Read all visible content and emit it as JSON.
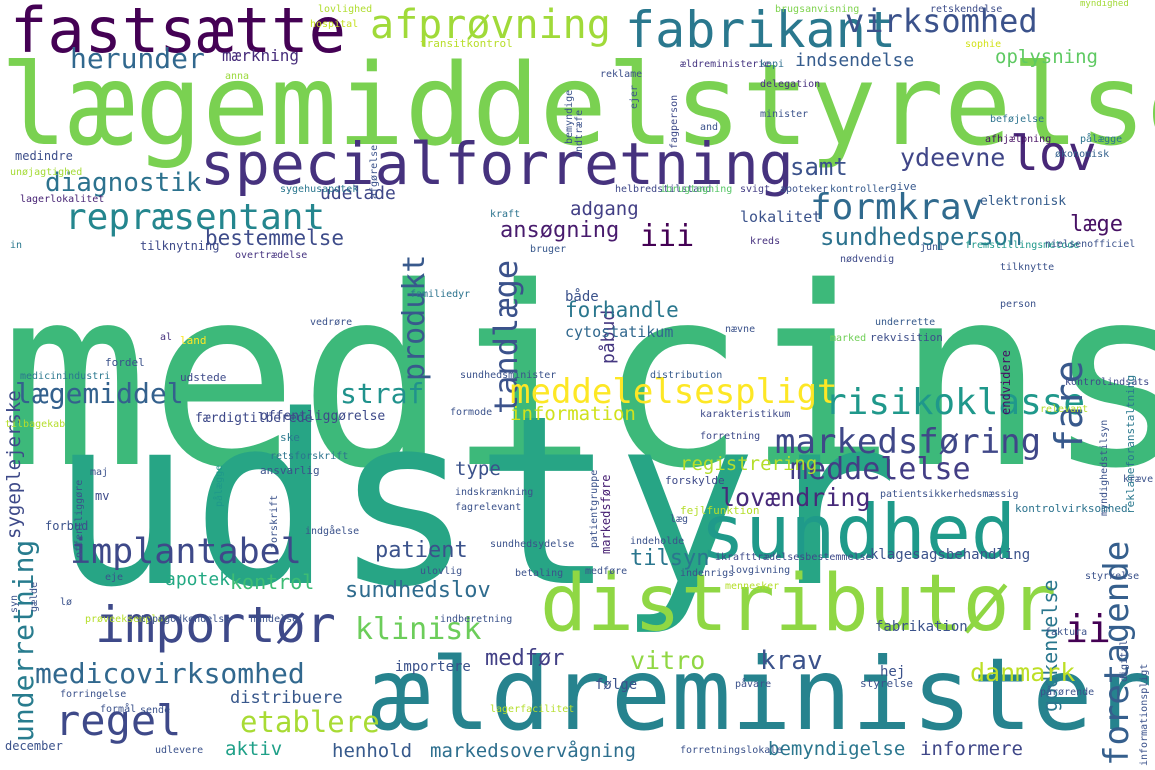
{
  "words": [
    {
      "text": "medicinsk",
      "c": "#3db97a"
    },
    {
      "text": "udstyr",
      "c": "#27a585"
    },
    {
      "text": "lægemiddelstyrelse",
      "c": "#7ad151"
    },
    {
      "text": "ældreminister",
      "c": "#26838e"
    },
    {
      "text": "distributør",
      "c": "#8fd744"
    },
    {
      "text": "sundhed",
      "c": "#1f9a8a"
    },
    {
      "text": "specialforretning",
      "c": "#46327e"
    },
    {
      "text": "fastsætte",
      "c": "#440154"
    },
    {
      "text": "fabrikant",
      "c": "#2a788e"
    },
    {
      "text": "afprøvning",
      "c": "#a0da39"
    },
    {
      "text": "virksomhed",
      "c": "#3b528b"
    },
    {
      "text": "herunder",
      "c": "#31688e"
    },
    {
      "text": "mærkning",
      "c": "#472d7b"
    },
    {
      "text": "indsendelse",
      "c": "#365c8d"
    },
    {
      "text": "oplysning",
      "c": "#5ec962"
    },
    {
      "text": "lov",
      "c": "#482878"
    },
    {
      "text": "samt",
      "c": "#3b528b"
    },
    {
      "text": "ydeevne",
      "c": "#404688"
    },
    {
      "text": "diagnostik",
      "c": "#2c728e"
    },
    {
      "text": "repræsentant",
      "c": "#24868e"
    },
    {
      "text": "formkrav",
      "c": "#306a8e"
    },
    {
      "text": "udelade",
      "c": "#3f4788"
    },
    {
      "text": "adgang",
      "c": "#423f85"
    },
    {
      "text": "bestemmelse",
      "c": "#3e4c8a"
    },
    {
      "text": "ansøgning",
      "c": "#481b6d"
    },
    {
      "text": "iii",
      "c": "#440154"
    },
    {
      "text": "tandlæge",
      "c": "#3b528b"
    },
    {
      "text": "sundhedsperson",
      "c": "#2c728e"
    },
    {
      "text": "læge",
      "c": "#471164"
    },
    {
      "text": "produkt",
      "c": "#38598c"
    },
    {
      "text": "påbud",
      "c": "#453781"
    },
    {
      "text": "forhandle",
      "c": "#2a778e"
    },
    {
      "text": "cytostatikum",
      "c": "#31688e"
    },
    {
      "text": "lægemiddel",
      "c": "#34618d"
    },
    {
      "text": "straf",
      "c": "#20928c"
    },
    {
      "text": "meddelelsespligt",
      "c": "#fde725"
    },
    {
      "text": "risikoklasse",
      "c": "#1f988b"
    },
    {
      "text": "information",
      "c": "#d0e11c"
    },
    {
      "text": "markedsføring",
      "c": "#3f4788"
    },
    {
      "text": "meddelelse",
      "c": "#433e85"
    },
    {
      "text": "type",
      "c": "#3b528b"
    },
    {
      "text": "registrering",
      "c": "#b5de2b"
    },
    {
      "text": "lovændring",
      "c": "#472a7a"
    },
    {
      "text": "fare",
      "c": "#38598c"
    },
    {
      "text": "underretning",
      "c": "#287c8e"
    },
    {
      "text": "implantabel",
      "c": "#3e4989"
    },
    {
      "text": "patient",
      "c": "#3b528b"
    },
    {
      "text": "tilsyn",
      "c": "#2a768e"
    },
    {
      "text": "apotek",
      "c": "#23a983"
    },
    {
      "text": "kontrol",
      "c": "#3dbc74"
    },
    {
      "text": "sundhedslov",
      "c": "#2f6c8e"
    },
    {
      "text": "importør",
      "c": "#3e4989"
    },
    {
      "text": "klinisk",
      "c": "#6ccd5a"
    },
    {
      "text": "foretagende",
      "c": "#355f8d"
    },
    {
      "text": "ii",
      "c": "#440154"
    },
    {
      "text": "medfør",
      "c": "#424086"
    },
    {
      "text": "vitro",
      "c": "#90d743"
    },
    {
      "text": "krav",
      "c": "#3b528b"
    },
    {
      "text": "godkendelse",
      "c": "#2a778e"
    },
    {
      "text": "medicovirksomhed",
      "c": "#31688e"
    },
    {
      "text": "regel",
      "c": "#3e4989"
    },
    {
      "text": "etablere",
      "c": "#a8db34"
    },
    {
      "text": "distribuere",
      "c": "#38588c"
    },
    {
      "text": "danmark",
      "c": "#bddf26"
    },
    {
      "text": "aktiv",
      "c": "#1fa088"
    },
    {
      "text": "henhold",
      "c": "#375a8c"
    },
    {
      "text": "markedsovervågning",
      "c": "#2e6f8e"
    },
    {
      "text": "bemyndigelse",
      "c": "#2a768e"
    },
    {
      "text": "informere",
      "c": "#3f4788"
    },
    {
      "text": "sygeplejerske",
      "c": "#3e4a89"
    },
    {
      "text": "transitkontrol",
      "c": "#b8de29"
    },
    {
      "text": "myndighed",
      "c": "#a2da37"
    },
    {
      "text": "brugsanvisning",
      "c": "#7fd34e"
    },
    {
      "text": "retskendelse",
      "c": "#3d4d8a"
    },
    {
      "text": "lovlighed",
      "c": "#b0dd2f"
    },
    {
      "text": "hospital",
      "c": "#c5e021"
    },
    {
      "text": "anna",
      "c": "#9bd93c"
    },
    {
      "text": "ældreministerie",
      "c": "#453581"
    },
    {
      "text": "kopi",
      "c": "#2e6e8e"
    },
    {
      "text": "sophie",
      "c": "#d2e21b"
    },
    {
      "text": "delegation",
      "c": "#472f7d"
    },
    {
      "text": "reklame",
      "c": "#3c4f8a"
    },
    {
      "text": "fagperson",
      "c": "#3e4a89"
    },
    {
      "text": "beføjelse",
      "c": "#2c738e"
    },
    {
      "text": "afhjælpning",
      "c": "#471164"
    },
    {
      "text": "økonomisk",
      "c": "#34618d"
    },
    {
      "text": "pålægge",
      "c": "#2b748e"
    },
    {
      "text": "medindre",
      "c": "#3d4e8a"
    },
    {
      "text": "unøjagtighed",
      "c": "#a5db36"
    },
    {
      "text": "sygehusapotek",
      "c": "#2a778e"
    },
    {
      "text": "helbredstilstand",
      "c": "#3f4889"
    },
    {
      "text": "ibrugtagning",
      "c": "#56c667"
    },
    {
      "text": "svigt",
      "c": "#433e85"
    },
    {
      "text": "apoteker",
      "c": "#3b528b"
    },
    {
      "text": "kontroller",
      "c": "#375b8d"
    },
    {
      "text": "give",
      "c": "#38588c"
    },
    {
      "text": "elektronisk",
      "c": "#365d8d"
    },
    {
      "text": "lagerlokalitet",
      "c": "#482475"
    },
    {
      "text": "kraft",
      "c": "#2c738e"
    },
    {
      "text": "lokalitet",
      "c": "#3b528b"
    },
    {
      "text": "in",
      "c": "#2a788e"
    },
    {
      "text": "fremstillingsmetode",
      "c": "#1f998a"
    },
    {
      "text": "tilknytning",
      "c": "#3e4a89"
    },
    {
      "text": "bruger",
      "c": "#38588c"
    },
    {
      "text": "kreds",
      "c": "#46317e"
    },
    {
      "text": "juni",
      "c": "#3b528b"
    },
    {
      "text": "nielsenofficiel",
      "c": "#3b528b"
    },
    {
      "text": "overtrædelse",
      "c": "#463480"
    },
    {
      "text": "nødvendig",
      "c": "#3e4a89"
    },
    {
      "text": "tilknytte",
      "c": "#3b528b"
    },
    {
      "text": "både",
      "c": "#3b528b"
    },
    {
      "text": "familiedyr",
      "c": "#2c738e"
    },
    {
      "text": "person",
      "c": "#3b528b"
    },
    {
      "text": "vedrøre",
      "c": "#3b528b"
    },
    {
      "text": "nævne",
      "c": "#3b528b"
    },
    {
      "text": "underrette",
      "c": "#375a8c"
    },
    {
      "text": "land",
      "c": "#fde725"
    },
    {
      "text": "al",
      "c": "#46327e"
    },
    {
      "text": "marked",
      "c": "#70cf57"
    },
    {
      "text": "rekvisition",
      "c": "#3d4e8a"
    },
    {
      "text": "endvidere",
      "c": "#471063"
    },
    {
      "text": "fordel",
      "c": "#3b528b"
    },
    {
      "text": "sundhedsminister",
      "c": "#3b528b"
    },
    {
      "text": "distribution",
      "c": "#375a8c"
    },
    {
      "text": "medicinindustri",
      "c": "#2a778e"
    },
    {
      "text": "udstede",
      "c": "#3e4a89"
    },
    {
      "text": "kontrolindsats",
      "c": "#3e4a89"
    },
    {
      "text": "reklameforanstaltning",
      "c": "#2a788e"
    },
    {
      "text": "færdigtilberede",
      "c": "#3e4989"
    },
    {
      "text": "offentliggørelse",
      "c": "#3e4a89"
    },
    {
      "text": "formode",
      "c": "#3b528b"
    },
    {
      "text": "karakteristikum",
      "c": "#3e4a89"
    },
    {
      "text": "relevant",
      "c": "#b5de2b"
    },
    {
      "text": "tilbagekab",
      "c": "#b5de2b"
    },
    {
      "text": "ske",
      "c": "#2a788e"
    },
    {
      "text": "forretning",
      "c": "#3e4a89"
    },
    {
      "text": "myndighedstilsyn",
      "c": "#3b528b"
    },
    {
      "text": "retsforskrift",
      "c": "#2c738e"
    },
    {
      "text": "ansvarlig",
      "c": "#3b528b"
    },
    {
      "text": "maj",
      "c": "#3b528b"
    },
    {
      "text": "pålægge",
      "c": "#1f998a"
    },
    {
      "text": "mv",
      "c": "#3e4a89"
    },
    {
      "text": "indskrænkning",
      "c": "#3b528b"
    },
    {
      "text": "markedsføre",
      "c": "#482173"
    },
    {
      "text": "forskylde",
      "c": "#3e4a89"
    },
    {
      "text": "patientsikkerhedsmæssig",
      "c": "#3b528b"
    },
    {
      "text": "krævе",
      "c": "#3b528b"
    },
    {
      "text": "forskrift",
      "c": "#3b528b"
    },
    {
      "text": "fagrelevant",
      "c": "#3b528b"
    },
    {
      "text": "fejlfunktion",
      "c": "#b5de2b"
    },
    {
      "text": "kontrolvirksomhed",
      "c": "#2c738e"
    },
    {
      "text": "læg",
      "c": "#3b528b"
    },
    {
      "text": "forbud",
      "c": "#3b528b"
    },
    {
      "text": "indgåelse",
      "c": "#3b528b"
    },
    {
      "text": "sundhedsydelse",
      "c": "#3b528b"
    },
    {
      "text": "patientgruppe",
      "c": "#3b528b"
    },
    {
      "text": "indeholde",
      "c": "#3b528b"
    },
    {
      "text": "ikrafttrædelsesbestemmelse",
      "c": "#3e4a89"
    },
    {
      "text": "klagesagsbehandling",
      "c": "#3b528b"
    },
    {
      "text": "eje",
      "c": "#3b528b"
    },
    {
      "text": "ulovlig",
      "c": "#3b528b"
    },
    {
      "text": "betaling",
      "c": "#3b528b"
    },
    {
      "text": "medføre",
      "c": "#3b528b"
    },
    {
      "text": "lovgivning",
      "c": "#3b528b"
    },
    {
      "text": "mennesker",
      "c": "#b5de2b"
    },
    {
      "text": "indenrigs",
      "c": "#3b528b"
    },
    {
      "text": "styrkelse",
      "c": "#3b528b"
    },
    {
      "text": "syn",
      "c": "#3b528b"
    },
    {
      "text": "lø",
      "c": "#3b528b"
    },
    {
      "text": "gælde",
      "c": "#3b528b"
    },
    {
      "text": "prøveeksemplar",
      "c": "#b5de2b"
    },
    {
      "text": "typegodkendelse",
      "c": "#3b528b"
    },
    {
      "text": "håndelse",
      "c": "#3b528b"
    },
    {
      "text": "indberetning",
      "c": "#3b528b"
    },
    {
      "text": "fabrikation",
      "c": "#3b528b"
    },
    {
      "text": "faktura",
      "c": "#3b528b"
    },
    {
      "text": "importere",
      "c": "#3b528b"
    },
    {
      "text": "forringelse",
      "c": "#3b528b"
    },
    {
      "text": "følge",
      "c": "#3b528b"
    },
    {
      "text": "styrelse",
      "c": "#3b528b"
    },
    {
      "text": "hej",
      "c": "#3b528b"
    },
    {
      "text": "formål",
      "c": "#3b528b"
    },
    {
      "text": "sende",
      "c": "#3b528b"
    },
    {
      "text": "påvare",
      "c": "#3b528b"
    },
    {
      "text": "pårørende",
      "c": "#3b528b"
    },
    {
      "text": "lagerfacilitet",
      "c": "#b5de2b"
    },
    {
      "text": "december",
      "c": "#3b528b"
    },
    {
      "text": "udlevere",
      "c": "#3b528b"
    },
    {
      "text": "forretningslokale",
      "c": "#3b528b"
    },
    {
      "text": "digital",
      "c": "#3b528b"
    },
    {
      "text": "informationspligt",
      "c": "#3b528b"
    },
    {
      "text": "offentliggøre",
      "c": "#3b528b"
    },
    {
      "text": "afgørelse",
      "c": "#3b528b"
    },
    {
      "text": "indtræfe",
      "c": "#3b528b"
    },
    {
      "text": "bemyndige",
      "c": "#3b528b"
    },
    {
      "text": "ejer",
      "c": "#3b528b"
    },
    {
      "text": "and",
      "c": "#3b528b"
    },
    {
      "text": "minister",
      "c": "#3b528b"
    }
  ]
}
